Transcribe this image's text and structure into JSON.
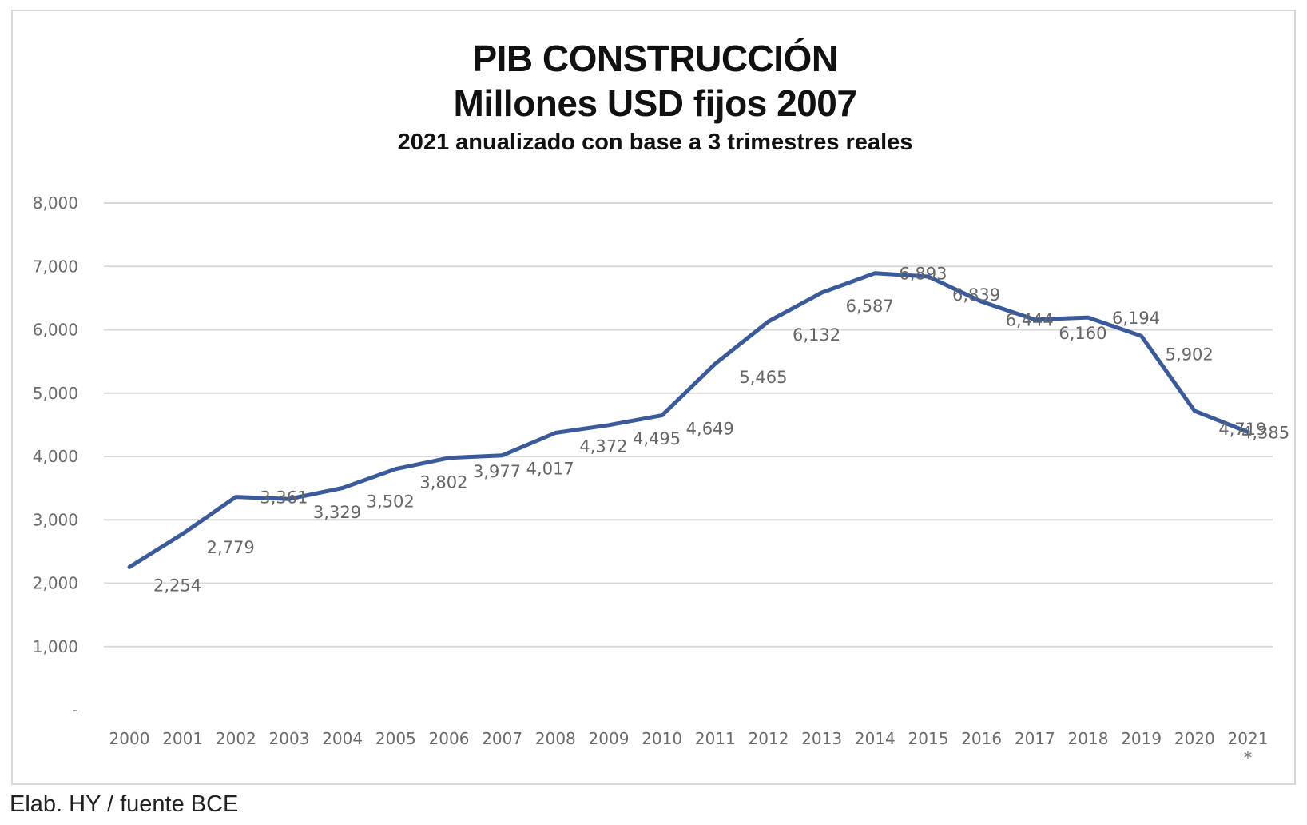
{
  "title_line1": "PIB CONSTRUCCIÓN",
  "title_line2": "Millones USD fijos 2007",
  "subtitle": "2021 anualizado con base a 3 trimestres reales",
  "source": "Elab. HY / fuente BCE",
  "chart_data": {
    "type": "line",
    "title": "PIB CONSTRUCCIÓN Millones USD fijos 2007",
    "subtitle": "2021 anualizado con base a 3 trimestres reales",
    "xlabel": "",
    "ylabel": "",
    "ylim": [
      0,
      8000
    ],
    "grid": true,
    "line_color": "#3a5a9b",
    "y_ticks": [
      0,
      1000,
      2000,
      3000,
      4000,
      5000,
      6000,
      7000,
      8000
    ],
    "y_tick_labels": [
      "-",
      "1,000",
      "2,000",
      "3,000",
      "4,000",
      "5,000",
      "6,000",
      "7,000",
      "8,000"
    ],
    "categories": [
      "2000",
      "2001",
      "2002",
      "2003",
      "2004",
      "2005",
      "2006",
      "2007",
      "2008",
      "2009",
      "2010",
      "2011",
      "2012",
      "2013",
      "2014",
      "2015",
      "2016",
      "2017",
      "2018",
      "2019",
      "2020",
      "2021"
    ],
    "category_footnote": {
      "category": "2021",
      "mark": "*"
    },
    "series": [
      {
        "name": "PIB Construcción",
        "values": [
          2254,
          2779,
          3361,
          3329,
          3502,
          3802,
          3977,
          4017,
          4372,
          4495,
          4649,
          5465,
          6132,
          6587,
          6893,
          6839,
          6444,
          6160,
          6194,
          5902,
          4719,
          4385
        ],
        "labels": [
          "2,254",
          "2,779",
          "3,361",
          "3,329",
          "3,502",
          "3,802",
          "3,977",
          "4,017",
          "4,372",
          "4,495",
          "4,649",
          "5,465",
          "6,132",
          "6,587",
          "6,893",
          "6,839",
          "6,444",
          "6,160",
          "6,194",
          "5,902",
          "4,719",
          "4,385"
        ]
      }
    ]
  }
}
